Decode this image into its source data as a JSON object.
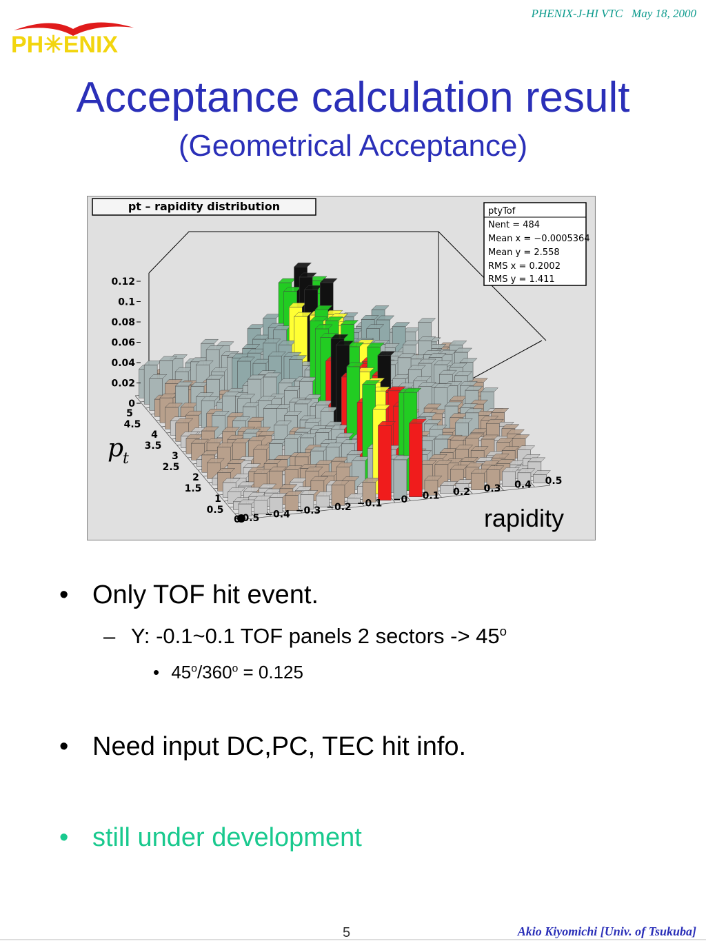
{
  "header": {
    "right_text": "PHENIX-J-HI VTC   May 18, 2000",
    "logo_text": "PH✳ENIX",
    "logo_icon": "phoenix-logo-icon"
  },
  "slide": {
    "title": "Acceptance calculation result",
    "subtitle": "(Geometrical Acceptance)"
  },
  "figure": {
    "plot_title": "pt – rapidity distribution",
    "x_axis_label": "rapidity",
    "y_axis_label_main": "p",
    "y_axis_label_sub": "t",
    "stats": {
      "name": "ptyTof",
      "lines": [
        "Nent = 484",
        "Mean x = −0.0005364",
        "Mean y =  2.558",
        "RMS x  = 0.2002",
        "RMS y  =  1.411"
      ]
    },
    "z_ticks": [
      "0.12",
      "0.1",
      "0.08",
      "0.06",
      "0.04",
      "0.02",
      "0"
    ],
    "pt_ticks": [
      "5",
      "4.5",
      "4",
      "3.5",
      "3",
      "2.5",
      "2",
      "1.5",
      "1",
      "0.5",
      "0"
    ],
    "rapidity_ticks": [
      "−0.5",
      "−0.4",
      "−0.3",
      "−0.2",
      "−0.1",
      "−0",
      "0.1",
      "0.2",
      "0.3",
      "0.4",
      "0.5"
    ]
  },
  "bullets": {
    "b1": "Only TOF hit event.",
    "b1_sub": "Y: -0.1~0.1 TOF panels 2 sectors -> 45",
    "b1_sub_sup": "o",
    "b1_subsub_a": "45",
    "b1_subsub_sup1": "o",
    "b1_subsub_b": "/360",
    "b1_subsub_sup2": "o",
    "b1_subsub_c": " = 0.125",
    "b2": "Need input DC,PC, TEC hit info.",
    "b3": "still under development"
  },
  "footer": {
    "page_number": "5",
    "author": "Akio Kiyomichi [Univ. of Tsukuba]"
  },
  "colors": {
    "title": "#2a2fb8",
    "header": "#0b9a8c",
    "green_bullet": "#19c98e"
  }
}
